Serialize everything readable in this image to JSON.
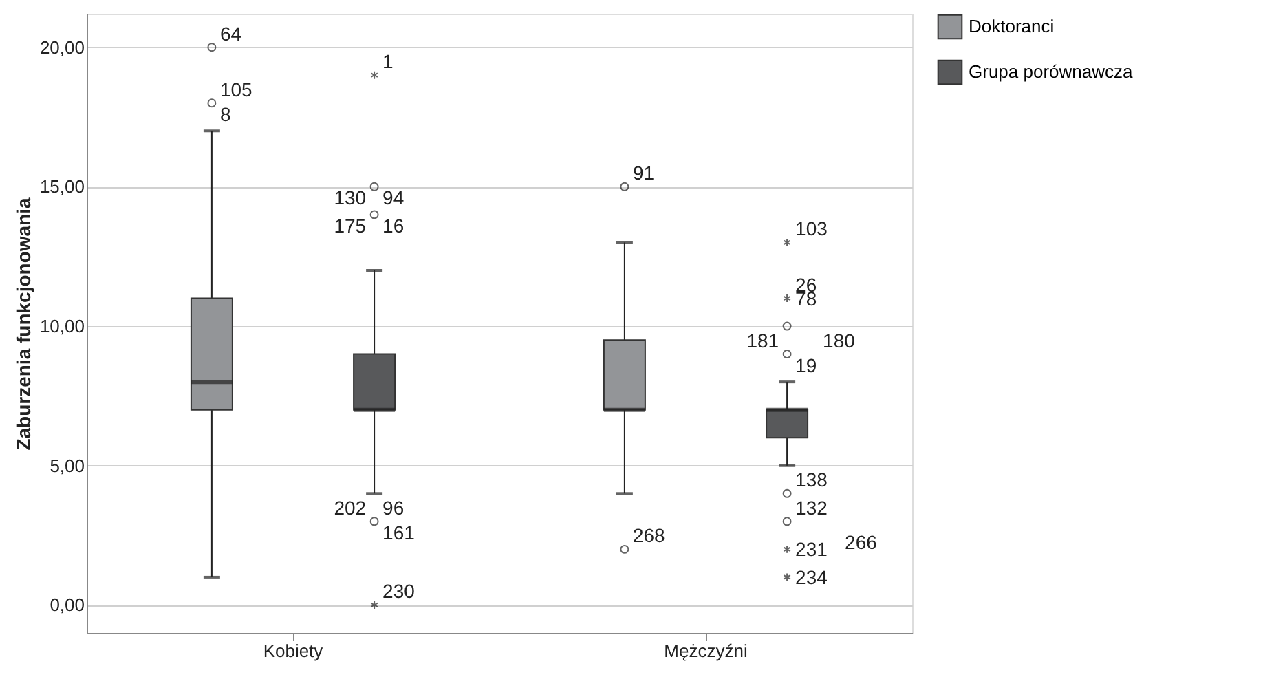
{
  "chart_data": {
    "type": "box",
    "ylabel": "Zaburzenia funkcjonowania",
    "categories": [
      "Kobiety",
      "Mężczyźni"
    ],
    "series": [
      {
        "name": "Doktoranci",
        "color": "#939598",
        "boxes": [
          {
            "low": 1,
            "q1": 7,
            "median": 8,
            "q3": 11,
            "high": 17,
            "outliers": [
              20,
              18
            ]
          },
          {
            "low": 4,
            "q1": 7,
            "median": 7,
            "q3": 9.5,
            "high": 13,
            "outliers": [
              15,
              2
            ]
          }
        ]
      },
      {
        "name": "Grupa porównawcza",
        "color": "#58595b",
        "boxes": [
          {
            "low": 4,
            "q1": 7,
            "median": 7,
            "q3": 9,
            "high": 12,
            "outliers": [
              19,
              15,
              14,
              3,
              0
            ]
          },
          {
            "low": 5,
            "q1": 6,
            "median": 7,
            "q3": 7,
            "high": 8,
            "outliers": [
              13,
              11,
              10,
              9,
              4,
              3,
              2,
              1
            ]
          }
        ]
      }
    ],
    "ylim": [
      -1,
      21.2
    ],
    "yticks": [
      {
        "value": 0,
        "label": "0,00"
      },
      {
        "value": 5,
        "label": "5,00"
      },
      {
        "value": 10,
        "label": "10,00"
      },
      {
        "value": 15,
        "label": "15,00"
      },
      {
        "value": 20,
        "label": "20,00"
      }
    ],
    "grid": "y",
    "legend": "right",
    "annotations": [
      "64",
      "105",
      "8",
      "1",
      "94",
      "130",
      "16",
      "175",
      "96",
      "161",
      "202",
      "230",
      "91",
      "268",
      "103",
      "26",
      "78",
      "180",
      "19",
      "181",
      "138",
      "132",
      "231",
      "266",
      "234"
    ]
  }
}
